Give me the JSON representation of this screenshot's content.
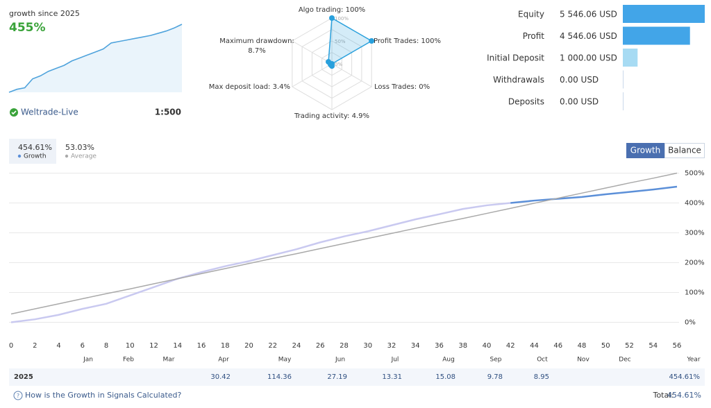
{
  "summary": {
    "label": "growth since 2025",
    "value": "455%",
    "broker": "Weltrade-Live",
    "leverage": "1:500",
    "sparkline": [
      0,
      20,
      30,
      90,
      110,
      140,
      160,
      180,
      210,
      230,
      250,
      270,
      290,
      330,
      340,
      350,
      360,
      370,
      380,
      395,
      410,
      430,
      455
    ],
    "color": "#4fa3dc"
  },
  "radar": {
    "color": "#29a0dc",
    "rticks": [
      {
        "value": 100,
        "label": "100%"
      },
      {
        "value": 50,
        "label": "50%"
      },
      {
        "value": 0,
        "label": "0%"
      }
    ],
    "axes": [
      {
        "lines": [
          "Algo trading: 100%"
        ],
        "value": 100
      },
      {
        "lines": [
          "Profit Trades: 100%"
        ],
        "value": 100
      },
      {
        "lines": [
          "Loss Trades: 0%"
        ],
        "value": 0
      },
      {
        "lines": [
          "Trading activity: 4.9%"
        ],
        "value": 4.9
      },
      {
        "lines": [
          "Max deposit load: 3.4%"
        ],
        "value": 3.4
      },
      {
        "lines": [
          "Maximum drawdown:",
          "8.7%"
        ],
        "value": 8.7
      }
    ]
  },
  "account": {
    "rows": [
      {
        "name": "Equity",
        "label": "5 546.06 USD",
        "value": 5546.06,
        "color": "#42a5e8"
      },
      {
        "name": "Profit",
        "label": "4 546.06 USD",
        "value": 4546.06,
        "color": "#42a5e8"
      },
      {
        "name": "Initial Deposit",
        "label": "1 000.00 USD",
        "value": 1000,
        "color": "#a7dbf3"
      },
      {
        "name": "Withdrawals",
        "label": "0.00 USD",
        "value": 0,
        "color": "#c9d8ea"
      },
      {
        "name": "Deposits",
        "label": "0.00 USD",
        "value": 0,
        "color": "#c9d8ea"
      }
    ]
  },
  "tabs": {
    "stats": [
      {
        "value": "454.61%",
        "name": "Growth",
        "color": "#5b8fd8"
      },
      {
        "value": "53.03%",
        "name": "Average",
        "color": "#aaaaaa"
      }
    ],
    "buttons": [
      "Growth",
      "Balance"
    ]
  },
  "chart_data": {
    "type": "line",
    "x": [
      0,
      2,
      4,
      6,
      8,
      10,
      12,
      14,
      16,
      18,
      20,
      22,
      24,
      26,
      28,
      30,
      32,
      34,
      36,
      38,
      40,
      42,
      44,
      46,
      48,
      50,
      52,
      54,
      56
    ],
    "series": [
      {
        "color": "#c9c9f0",
        "values": [
          0,
          10,
          25,
          45,
          62,
          90,
          118,
          146,
          168,
          188,
          205,
          225,
          245,
          268,
          288,
          305,
          325,
          345,
          362,
          380,
          392,
          400,
          null,
          null,
          null,
          null,
          null,
          null,
          null
        ]
      },
      {
        "color": "#5b8fd8",
        "values": [
          null,
          null,
          null,
          null,
          null,
          null,
          null,
          null,
          null,
          null,
          null,
          null,
          null,
          null,
          null,
          null,
          null,
          null,
          null,
          null,
          null,
          400,
          408,
          414,
          420,
          429,
          437,
          445,
          454.61
        ]
      },
      {
        "color": "#a9a9a9",
        "values": [
          28,
          45,
          62,
          79,
          96,
          112,
          129,
          146,
          163,
          180,
          197,
          214,
          230,
          247,
          264,
          281,
          298,
          315,
          332,
          348,
          365,
          382,
          399,
          416,
          433,
          450,
          467,
          483,
          500
        ]
      }
    ],
    "xlim": [
      0,
      56
    ],
    "xticks": [
      0,
      2,
      4,
      6,
      8,
      10,
      12,
      14,
      16,
      18,
      20,
      22,
      24,
      26,
      28,
      30,
      32,
      34,
      36,
      38,
      40,
      42,
      44,
      46,
      48,
      50,
      52,
      54,
      56
    ],
    "ylim": [
      -50,
      550
    ],
    "yticks": [
      {
        "value": 0,
        "label": "0%"
      },
      {
        "value": 100,
        "label": "100%"
      },
      {
        "value": 200,
        "label": "200%"
      },
      {
        "value": 300,
        "label": "300%"
      },
      {
        "value": 400,
        "label": "400%"
      },
      {
        "value": 500,
        "label": "500%"
      }
    ],
    "grid": true
  },
  "table": {
    "columns": [
      "Jan",
      "Feb",
      "Mar",
      "Apr",
      "May",
      "Jun",
      "Jul",
      "Aug",
      "Sep",
      "Oct",
      "Nov",
      "Dec",
      "Year"
    ],
    "rows": [
      {
        "year": "2025",
        "cells": [
          null,
          null,
          null,
          "30.42",
          "114.36",
          "27.19",
          "13.31",
          "15.08",
          "9.78",
          "8.95",
          null,
          null,
          "454.61%"
        ]
      }
    ]
  },
  "footer": {
    "link": "How is the Growth in Signals Calculated?",
    "total_label": "Total:",
    "total": "454.61%"
  }
}
